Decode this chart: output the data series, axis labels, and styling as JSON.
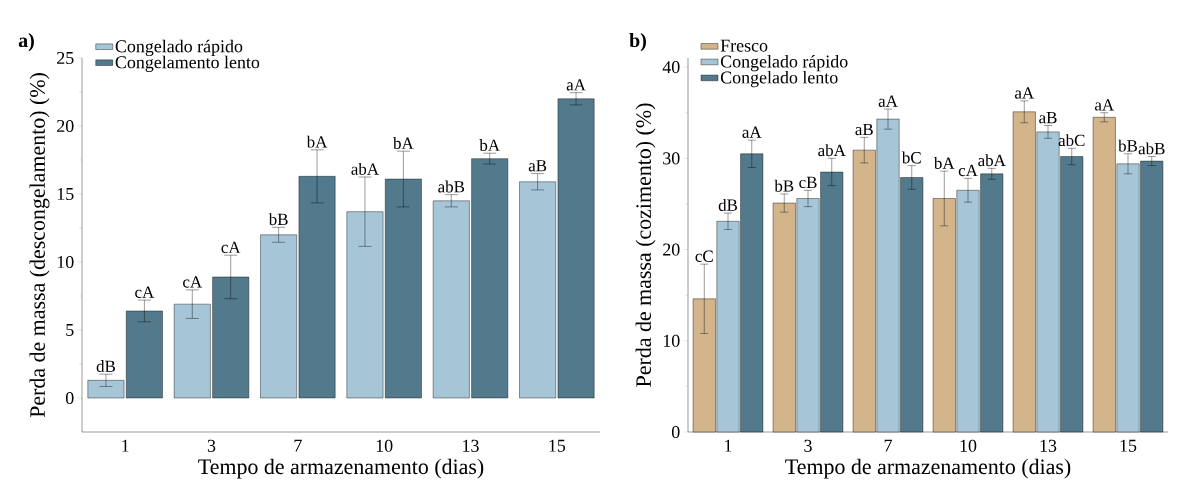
{
  "chart_data": [
    {
      "type": "bar",
      "title": "a)",
      "xlabel": "Tempo de armazenamento (dias)",
      "ylabel": "Perda de massa (descongelamento) (%)",
      "categories": [
        "1",
        "3",
        "7",
        "10",
        "13",
        "15"
      ],
      "ylim": [
        -2.5,
        25
      ],
      "yticks": [
        0,
        5,
        10,
        15,
        20,
        25
      ],
      "legend": "top left",
      "series": [
        {
          "name": "Congelado rápido",
          "color": "#a6c6d8",
          "values": [
            1.3,
            6.9,
            12.0,
            13.7,
            14.5,
            15.9
          ],
          "errors": [
            0.45,
            1.05,
            0.55,
            2.55,
            0.45,
            0.6
          ],
          "value_labels": [
            "dB",
            "cA",
            "bB",
            "abA",
            "abB",
            "aB"
          ]
        },
        {
          "name": "Congelamento lento",
          "color": "#527a8c",
          "values": [
            6.4,
            8.9,
            16.3,
            16.1,
            17.6,
            22.0
          ],
          "errors": [
            0.8,
            1.6,
            1.95,
            2.05,
            0.4,
            0.45
          ],
          "value_labels": [
            "cA",
            "cA",
            "bA",
            "bA",
            "bA",
            "aA"
          ]
        }
      ]
    },
    {
      "type": "bar",
      "title": "b)",
      "xlabel": "Tempo de armazenamento (dias)",
      "ylabel": "Perda de massa (cozimento) (%)",
      "categories": [
        "1",
        "3",
        "7",
        "10",
        "13",
        "15"
      ],
      "ylim": [
        0,
        41
      ],
      "yticks": [
        0,
        10,
        20,
        30,
        40
      ],
      "legend": "top left",
      "series": [
        {
          "name": "Fresco",
          "color": "#d4b48a",
          "values": [
            14.6,
            25.1,
            30.9,
            25.6,
            35.1,
            34.5
          ],
          "errors": [
            3.8,
            1.0,
            1.4,
            3.0,
            1.2,
            0.5
          ],
          "value_labels": [
            "cC",
            "bB",
            "aB",
            "bA",
            "aA",
            "aA"
          ]
        },
        {
          "name": "Congelado rápido",
          "color": "#a6c6d8",
          "values": [
            23.1,
            25.6,
            34.3,
            26.5,
            32.9,
            29.4
          ],
          "errors": [
            0.9,
            0.9,
            1.1,
            1.3,
            0.7,
            1.1
          ],
          "value_labels": [
            "dB",
            "cB",
            "aA",
            "cA",
            "aB",
            "bB"
          ]
        },
        {
          "name": "Congelado lento",
          "color": "#527a8c",
          "values": [
            30.5,
            28.5,
            27.9,
            28.3,
            30.2,
            29.7
          ],
          "errors": [
            1.5,
            1.5,
            1.3,
            0.6,
            0.9,
            0.5
          ],
          "value_labels": [
            "aA",
            "abA",
            "bC",
            "abA",
            "abC",
            "abB"
          ]
        }
      ]
    }
  ]
}
